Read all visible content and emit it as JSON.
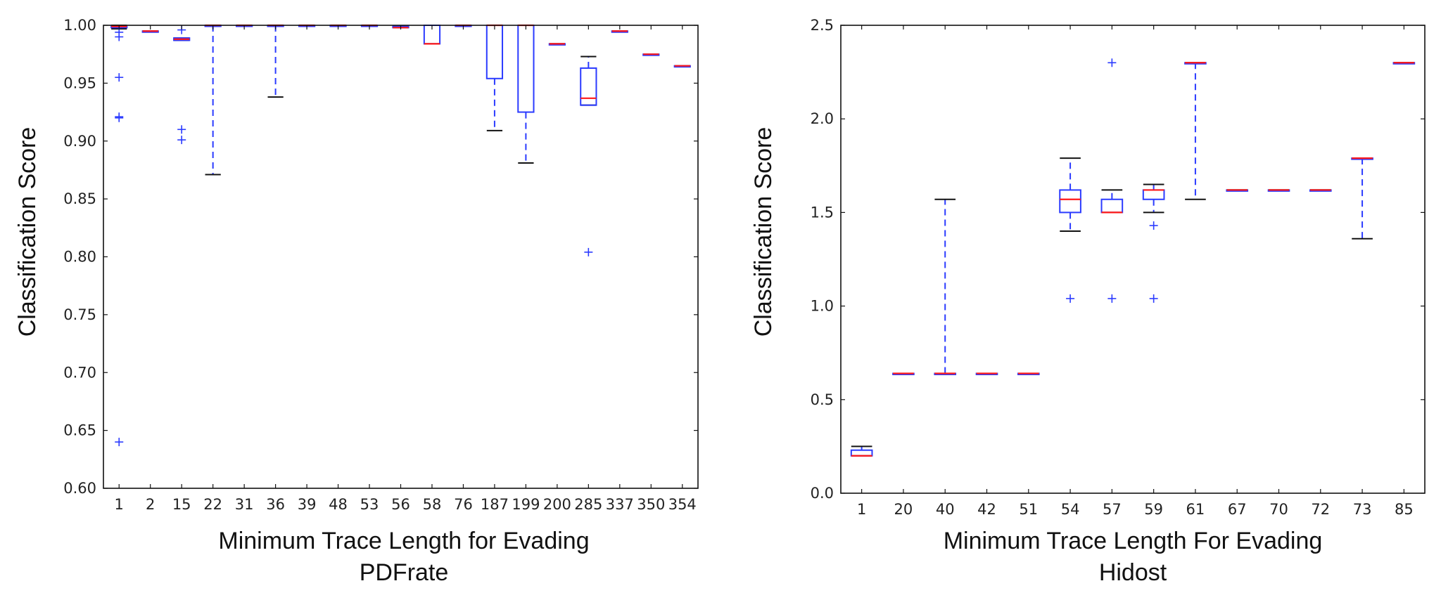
{
  "chart_data": [
    {
      "type": "box",
      "title": "",
      "xlabel": "Minimum Trace Length for Evading",
      "xlabel2": "PDFrate",
      "ylabel": "Classification Score",
      "ylim": [
        0.6,
        1.0
      ],
      "yticks": [
        0.6,
        0.65,
        0.7,
        0.75,
        0.8,
        0.85,
        0.9,
        0.95,
        1.0
      ],
      "ytick_labels": [
        "0.60",
        "0.65",
        "0.70",
        "0.75",
        "0.80",
        "0.85",
        "0.90",
        "0.95",
        "1.00"
      ],
      "grid": false,
      "categories": [
        "1",
        "2",
        "15",
        "22",
        "31",
        "36",
        "39",
        "48",
        "53",
        "56",
        "58",
        "76",
        "187",
        "199",
        "200",
        "285",
        "337",
        "350",
        "354"
      ],
      "boxes": [
        {
          "whislo": 0.997,
          "q1": 0.998,
          "med": 0.999,
          "q3": 0.999,
          "whishi": 1.0,
          "fliers": [
            0.99,
            0.994,
            0.955,
            0.921,
            0.92,
            0.64
          ]
        },
        {
          "whislo": 0.995,
          "q1": 0.995,
          "med": 0.995,
          "q3": 0.995,
          "whishi": 0.995,
          "fliers": []
        },
        {
          "whislo": 0.987,
          "q1": 0.987,
          "med": 0.988,
          "q3": 0.989,
          "whishi": 0.989,
          "fliers": [
            0.996,
            0.91,
            0.901
          ]
        },
        {
          "whislo": 0.871,
          "q1": 1.0,
          "med": 1.0,
          "q3": 1.0,
          "whishi": 1.0,
          "fliers": []
        },
        {
          "whislo": 1.0,
          "q1": 1.0,
          "med": 1.0,
          "q3": 1.0,
          "whishi": 1.0,
          "fliers": []
        },
        {
          "whislo": 0.938,
          "q1": 1.0,
          "med": 1.0,
          "q3": 1.0,
          "whishi": 1.0,
          "fliers": []
        },
        {
          "whislo": 1.0,
          "q1": 1.0,
          "med": 1.0,
          "q3": 1.0,
          "whishi": 1.0,
          "fliers": []
        },
        {
          "whislo": 1.0,
          "q1": 1.0,
          "med": 1.0,
          "q3": 1.0,
          "whishi": 1.0,
          "fliers": []
        },
        {
          "whislo": 1.0,
          "q1": 1.0,
          "med": 1.0,
          "q3": 1.0,
          "whishi": 1.0,
          "fliers": []
        },
        {
          "whislo": 0.998,
          "q1": 0.998,
          "med": 0.998,
          "q3": 0.999,
          "whishi": 0.999,
          "fliers": []
        },
        {
          "whislo": 0.984,
          "q1": 0.984,
          "med": 0.984,
          "q3": 1.0,
          "whishi": 1.0,
          "fliers": []
        },
        {
          "whislo": 1.0,
          "q1": 1.0,
          "med": 1.0,
          "q3": 1.0,
          "whishi": 1.0,
          "fliers": []
        },
        {
          "whislo": 0.909,
          "q1": 0.954,
          "med": 1.0,
          "q3": 1.0,
          "whishi": 1.0,
          "fliers": []
        },
        {
          "whislo": 0.881,
          "q1": 0.925,
          "med": 1.0,
          "q3": 1.0,
          "whishi": 1.0,
          "fliers": []
        },
        {
          "whislo": 0.984,
          "q1": 0.984,
          "med": 0.984,
          "q3": 0.984,
          "whishi": 0.984,
          "fliers": []
        },
        {
          "whislo": 0.931,
          "q1": 0.931,
          "med": 0.937,
          "q3": 0.963,
          "whishi": 0.973,
          "fliers": [
            0.804
          ]
        },
        {
          "whislo": 0.995,
          "q1": 0.995,
          "med": 0.995,
          "q3": 0.995,
          "whishi": 0.995,
          "fliers": []
        },
        {
          "whislo": 0.975,
          "q1": 0.975,
          "med": 0.975,
          "q3": 0.975,
          "whishi": 0.975,
          "fliers": []
        },
        {
          "whislo": 0.965,
          "q1": 0.965,
          "med": 0.965,
          "q3": 0.965,
          "whishi": 0.965,
          "fliers": []
        }
      ]
    },
    {
      "type": "box",
      "title": "",
      "xlabel": "Minimum Trace Length For Evading",
      "xlabel2": "Hidost",
      "ylabel": "Classification Score",
      "ylim": [
        0.0,
        2.5
      ],
      "yticks": [
        0.0,
        0.5,
        1.0,
        1.5,
        2.0,
        2.5
      ],
      "ytick_labels": [
        "0.0",
        "0.5",
        "1.0",
        "1.5",
        "2.0",
        "2.5"
      ],
      "grid": false,
      "categories": [
        "1",
        "20",
        "40",
        "42",
        "51",
        "54",
        "57",
        "59",
        "61",
        "67",
        "70",
        "72",
        "73",
        "85"
      ],
      "boxes": [
        {
          "whislo": 0.2,
          "q1": 0.2,
          "med": 0.2,
          "q3": 0.23,
          "whishi": 0.25,
          "fliers": []
        },
        {
          "whislo": 0.64,
          "q1": 0.64,
          "med": 0.64,
          "q3": 0.64,
          "whishi": 0.64,
          "fliers": []
        },
        {
          "whislo": 0.64,
          "q1": 0.64,
          "med": 0.64,
          "q3": 0.64,
          "whishi": 1.57,
          "fliers": []
        },
        {
          "whislo": 0.64,
          "q1": 0.64,
          "med": 0.64,
          "q3": 0.64,
          "whishi": 0.64,
          "fliers": []
        },
        {
          "whislo": 0.64,
          "q1": 0.64,
          "med": 0.64,
          "q3": 0.64,
          "whishi": 0.64,
          "fliers": []
        },
        {
          "whislo": 1.4,
          "q1": 1.5,
          "med": 1.57,
          "q3": 1.62,
          "whishi": 1.79,
          "fliers": [
            1.04
          ]
        },
        {
          "whislo": 1.5,
          "q1": 1.5,
          "med": 1.5,
          "q3": 1.57,
          "whishi": 1.62,
          "fliers": [
            2.3,
            1.04
          ]
        },
        {
          "whislo": 1.5,
          "q1": 1.57,
          "med": 1.62,
          "q3": 1.62,
          "whishi": 1.65,
          "fliers": [
            1.43,
            1.04
          ]
        },
        {
          "whislo": 1.57,
          "q1": 2.3,
          "med": 2.3,
          "q3": 2.3,
          "whishi": 2.3,
          "fliers": []
        },
        {
          "whislo": 1.62,
          "q1": 1.62,
          "med": 1.62,
          "q3": 1.62,
          "whishi": 1.62,
          "fliers": []
        },
        {
          "whislo": 1.62,
          "q1": 1.62,
          "med": 1.62,
          "q3": 1.62,
          "whishi": 1.62,
          "fliers": []
        },
        {
          "whislo": 1.62,
          "q1": 1.62,
          "med": 1.62,
          "q3": 1.62,
          "whishi": 1.62,
          "fliers": []
        },
        {
          "whislo": 1.36,
          "q1": 1.79,
          "med": 1.79,
          "q3": 1.79,
          "whishi": 1.79,
          "fliers": []
        },
        {
          "whislo": 2.3,
          "q1": 2.3,
          "med": 2.3,
          "q3": 2.3,
          "whishi": 2.3,
          "fliers": []
        }
      ]
    }
  ],
  "colors": {
    "box": "#2b3bff",
    "median": "#ff1a1a",
    "cap": "#111111",
    "axis": "#111111",
    "text": "#111111"
  }
}
